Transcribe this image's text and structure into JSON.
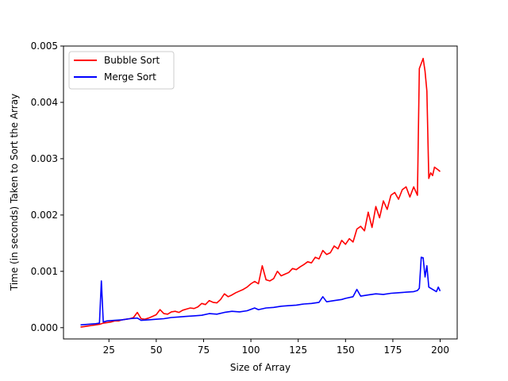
{
  "chart_data": {
    "type": "line",
    "title": "",
    "xlabel": "Size of Array",
    "ylabel": "Time (in seconds) Taken to Sort the Array",
    "xlim": [
      1,
      209
    ],
    "ylim": [
      -0.0002,
      0.005
    ],
    "xticks": [
      25,
      50,
      75,
      100,
      125,
      150,
      175,
      200
    ],
    "xtick_labels": [
      "25",
      "50",
      "75",
      "100",
      "125",
      "150",
      "175",
      "200"
    ],
    "yticks": [
      0.0,
      0.001,
      0.002,
      0.003,
      0.004,
      0.005
    ],
    "ytick_labels": [
      "0.000",
      "0.001",
      "0.002",
      "0.003",
      "0.004",
      "0.005"
    ],
    "grid": false,
    "legend_position": "upper-left",
    "series": [
      {
        "name": "Bubble Sort",
        "color": "#ff0000",
        "points": [
          [
            10,
            1e-05
          ],
          [
            12,
            2e-05
          ],
          [
            14,
            3e-05
          ],
          [
            16,
            4e-05
          ],
          [
            18,
            5e-05
          ],
          [
            20,
            6e-05
          ],
          [
            22,
            8e-05
          ],
          [
            24,
            9e-05
          ],
          [
            26,
            0.0001
          ],
          [
            28,
            0.00012
          ],
          [
            30,
            0.00012
          ],
          [
            32,
            0.00014
          ],
          [
            34,
            0.00015
          ],
          [
            36,
            0.00016
          ],
          [
            38,
            0.00018
          ],
          [
            40,
            0.00027
          ],
          [
            42,
            0.00016
          ],
          [
            44,
            0.00015
          ],
          [
            46,
            0.00017
          ],
          [
            48,
            0.0002
          ],
          [
            50,
            0.00023
          ],
          [
            52,
            0.00032
          ],
          [
            54,
            0.00025
          ],
          [
            56,
            0.00024
          ],
          [
            58,
            0.00028
          ],
          [
            60,
            0.00029
          ],
          [
            62,
            0.00027
          ],
          [
            64,
            0.00031
          ],
          [
            66,
            0.00033
          ],
          [
            68,
            0.00035
          ],
          [
            70,
            0.00034
          ],
          [
            72,
            0.00037
          ],
          [
            74,
            0.00043
          ],
          [
            76,
            0.00041
          ],
          [
            78,
            0.00048
          ],
          [
            80,
            0.00045
          ],
          [
            82,
            0.00044
          ],
          [
            84,
            0.0005
          ],
          [
            86,
            0.0006
          ],
          [
            88,
            0.00055
          ],
          [
            90,
            0.00058
          ],
          [
            92,
            0.00062
          ],
          [
            94,
            0.00065
          ],
          [
            96,
            0.00068
          ],
          [
            98,
            0.00072
          ],
          [
            100,
            0.00078
          ],
          [
            102,
            0.00082
          ],
          [
            104,
            0.00078
          ],
          [
            106,
            0.0011
          ],
          [
            108,
            0.00085
          ],
          [
            110,
            0.00083
          ],
          [
            112,
            0.00087
          ],
          [
            114,
            0.001
          ],
          [
            116,
            0.00092
          ],
          [
            118,
            0.00095
          ],
          [
            120,
            0.00098
          ],
          [
            122,
            0.00105
          ],
          [
            124,
            0.00103
          ],
          [
            126,
            0.00108
          ],
          [
            128,
            0.00112
          ],
          [
            130,
            0.00117
          ],
          [
            132,
            0.00115
          ],
          [
            134,
            0.00125
          ],
          [
            136,
            0.00122
          ],
          [
            138,
            0.00137
          ],
          [
            140,
            0.0013
          ],
          [
            142,
            0.00133
          ],
          [
            144,
            0.00145
          ],
          [
            146,
            0.0014
          ],
          [
            148,
            0.00155
          ],
          [
            150,
            0.00148
          ],
          [
            152,
            0.00158
          ],
          [
            154,
            0.00152
          ],
          [
            156,
            0.00175
          ],
          [
            158,
            0.0018
          ],
          [
            160,
            0.00172
          ],
          [
            162,
            0.00205
          ],
          [
            164,
            0.00178
          ],
          [
            166,
            0.00215
          ],
          [
            168,
            0.00195
          ],
          [
            170,
            0.00225
          ],
          [
            172,
            0.0021
          ],
          [
            174,
            0.00235
          ],
          [
            176,
            0.0024
          ],
          [
            178,
            0.00228
          ],
          [
            180,
            0.00245
          ],
          [
            182,
            0.0025
          ],
          [
            184,
            0.00232
          ],
          [
            186,
            0.0025
          ],
          [
            188,
            0.00235
          ],
          [
            189,
            0.0046
          ],
          [
            191,
            0.00478
          ],
          [
            192,
            0.00455
          ],
          [
            193,
            0.0042
          ],
          [
            194,
            0.00265
          ],
          [
            195,
            0.00275
          ],
          [
            196,
            0.0027
          ],
          [
            197,
            0.00285
          ],
          [
            199,
            0.0028
          ],
          [
            200,
            0.00277
          ]
        ]
      },
      {
        "name": "Merge Sort",
        "color": "#0000ff",
        "points": [
          [
            10,
            5e-05
          ],
          [
            14,
            6e-05
          ],
          [
            18,
            7e-05
          ],
          [
            20,
            8e-05
          ],
          [
            21,
            0.00083
          ],
          [
            22,
            0.0001
          ],
          [
            24,
            0.00012
          ],
          [
            28,
            0.00013
          ],
          [
            32,
            0.00014
          ],
          [
            36,
            0.00016
          ],
          [
            40,
            0.00017
          ],
          [
            42,
            0.00013
          ],
          [
            46,
            0.00014
          ],
          [
            50,
            0.00015
          ],
          [
            54,
            0.00016
          ],
          [
            58,
            0.00018
          ],
          [
            62,
            0.00019
          ],
          [
            66,
            0.0002
          ],
          [
            70,
            0.00021
          ],
          [
            74,
            0.00022
          ],
          [
            78,
            0.00025
          ],
          [
            82,
            0.00024
          ],
          [
            86,
            0.00027
          ],
          [
            90,
            0.00029
          ],
          [
            94,
            0.00028
          ],
          [
            98,
            0.0003
          ],
          [
            102,
            0.00035
          ],
          [
            104,
            0.00032
          ],
          [
            108,
            0.00035
          ],
          [
            112,
            0.00036
          ],
          [
            116,
            0.00038
          ],
          [
            120,
            0.00039
          ],
          [
            124,
            0.0004
          ],
          [
            128,
            0.00042
          ],
          [
            132,
            0.00043
          ],
          [
            136,
            0.00045
          ],
          [
            138,
            0.00055
          ],
          [
            140,
            0.00046
          ],
          [
            144,
            0.00048
          ],
          [
            148,
            0.0005
          ],
          [
            150,
            0.00052
          ],
          [
            154,
            0.00055
          ],
          [
            156,
            0.00068
          ],
          [
            158,
            0.00056
          ],
          [
            162,
            0.00058
          ],
          [
            166,
            0.0006
          ],
          [
            170,
            0.00059
          ],
          [
            174,
            0.00061
          ],
          [
            178,
            0.00062
          ],
          [
            182,
            0.00063
          ],
          [
            186,
            0.00064
          ],
          [
            188,
            0.00066
          ],
          [
            189,
            0.0007
          ],
          [
            190,
            0.00125
          ],
          [
            191,
            0.00124
          ],
          [
            192,
            0.0009
          ],
          [
            193,
            0.0011
          ],
          [
            194,
            0.00072
          ],
          [
            196,
            0.00068
          ],
          [
            198,
            0.00064
          ],
          [
            199,
            0.00072
          ],
          [
            200,
            0.00065
          ]
        ]
      }
    ]
  }
}
